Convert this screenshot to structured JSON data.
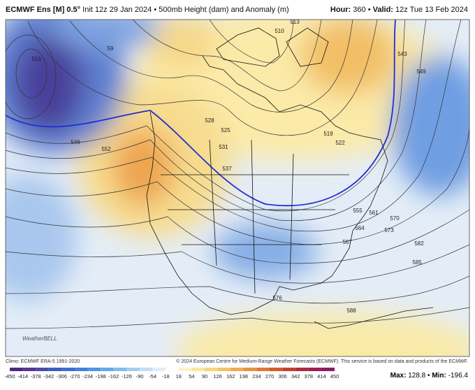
{
  "header": {
    "model": "ECMWF Ens [M] 0.5°",
    "init": "Init 12z 29 Jan 2024 • 500mb Height (dam) and Anomaly (m)",
    "hour_label": "Hour:",
    "hour": "360",
    "sep": "•",
    "valid_label": "Valid:",
    "valid": "12z Tue 13 Feb 2024"
  },
  "map": {
    "contour_labels": [
      "516",
      "546",
      "552",
      "528",
      "525",
      "531",
      "537",
      "543",
      "549",
      "555",
      "561",
      "564",
      "567",
      "570",
      "573",
      "576",
      "582",
      "585",
      "588",
      "510",
      "513",
      "519",
      "522",
      "59"
    ],
    "watermark": "WeatherBELL"
  },
  "footer": {
    "climo": "Climo: ECMWF ERA-5 1991-2020",
    "copyright": "© 2024 European Centre for Medium-Range Weather Forecasts (ECMWF). This service is based on data and products of the ECMWF.",
    "max_label": "Max:",
    "max": "128.8",
    "sep": "•",
    "min_label": "Min:",
    "min": "-196.4"
  },
  "colorbar": {
    "ticks": [
      "-450",
      "-414",
      "-378",
      "-342",
      "-306",
      "-270",
      "-234",
      "-198",
      "-162",
      "-126",
      "-90",
      "-54",
      "-18",
      "18",
      "54",
      "90",
      "126",
      "162",
      "198",
      "234",
      "270",
      "306",
      "342",
      "378",
      "414",
      "450"
    ]
  }
}
